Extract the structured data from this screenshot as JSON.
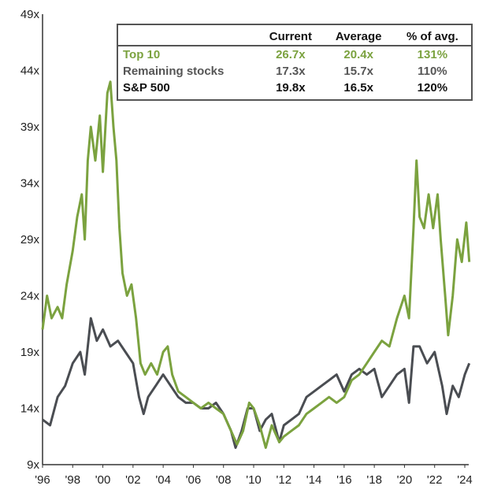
{
  "chart_data": {
    "type": "line",
    "title": "",
    "xlabel": "",
    "ylabel": "",
    "xlim": [
      1996,
      2024.4
    ],
    "ylim": [
      9,
      49
    ],
    "x_ticks": [
      "'96",
      "'98",
      "'00",
      "'02",
      "'04",
      "'06",
      "'08",
      "'10",
      "'12",
      "'14",
      "'16",
      "'18",
      "'20",
      "'22",
      "'24"
    ],
    "y_ticks": [
      "9x",
      "14x",
      "19x",
      "24x",
      "29x",
      "34x",
      "39x",
      "44x",
      "49x"
    ],
    "grid": false,
    "series": [
      {
        "name": "Top 10",
        "color": "#7ba23f",
        "x": [
          1996.0,
          1996.3,
          1996.6,
          1997.0,
          1997.3,
          1997.6,
          1998.0,
          1998.3,
          1998.6,
          1998.8,
          1999.0,
          1999.2,
          1999.5,
          1999.8,
          2000.0,
          2000.3,
          2000.5,
          2000.7,
          2000.9,
          2001.1,
          2001.3,
          2001.6,
          2001.9,
          2002.2,
          2002.5,
          2002.8,
          2003.2,
          2003.6,
          2004.0,
          2004.3,
          2004.6,
          2005.0,
          2005.5,
          2006.0,
          2006.5,
          2007.0,
          2007.5,
          2008.0,
          2008.5,
          2008.9,
          2009.3,
          2009.7,
          2010.0,
          2010.4,
          2010.8,
          2011.2,
          2011.7,
          2012.0,
          2012.5,
          2013.0,
          2013.5,
          2014.0,
          2014.5,
          2015.0,
          2015.5,
          2016.0,
          2016.5,
          2017.0,
          2017.5,
          2018.0,
          2018.5,
          2019.0,
          2019.5,
          2020.0,
          2020.3,
          2020.6,
          2020.8,
          2021.0,
          2021.3,
          2021.6,
          2021.9,
          2022.2,
          2022.4,
          2022.7,
          2022.9,
          2023.2,
          2023.5,
          2023.8,
          2024.1,
          2024.3
        ],
        "values": [
          21,
          24,
          22,
          23,
          22,
          25,
          28,
          31,
          33,
          29,
          36,
          39,
          36,
          40,
          35,
          42,
          43,
          39,
          36,
          30,
          26,
          24,
          25,
          22,
          18,
          17,
          18,
          17,
          19,
          19.5,
          17,
          15.5,
          15,
          14.5,
          14,
          14.5,
          14,
          13.5,
          12,
          10.8,
          12,
          14.5,
          14,
          12.5,
          10.5,
          12.5,
          11,
          11.5,
          12,
          12.5,
          13.5,
          14,
          14.5,
          15,
          14.5,
          15,
          16.5,
          17,
          18,
          19,
          20,
          19.5,
          22,
          24,
          22,
          30,
          36,
          31,
          30,
          33,
          30,
          33,
          29,
          24,
          20.5,
          24,
          29,
          27,
          30.5,
          27
        ]
      },
      {
        "name": "Remaining stocks",
        "color": "#4a4d52",
        "x": [
          1996.0,
          1996.5,
          1997.0,
          1997.5,
          1998.0,
          1998.5,
          1998.8,
          1999.2,
          1999.6,
          2000.0,
          2000.5,
          2001.0,
          2001.5,
          2002.0,
          2002.4,
          2002.7,
          2003.0,
          2003.5,
          2004.0,
          2004.5,
          2005.0,
          2005.5,
          2006.0,
          2006.5,
          2007.0,
          2007.5,
          2008.0,
          2008.5,
          2008.8,
          2009.2,
          2009.6,
          2010.0,
          2010.4,
          2010.8,
          2011.2,
          2011.7,
          2012.0,
          2012.5,
          2013.0,
          2013.5,
          2014.0,
          2014.5,
          2015.0,
          2015.5,
          2016.0,
          2016.5,
          2017.0,
          2017.5,
          2018.0,
          2018.5,
          2019.0,
          2019.5,
          2020.0,
          2020.3,
          2020.6,
          2021.0,
          2021.5,
          2022.0,
          2022.5,
          2022.8,
          2023.2,
          2023.6,
          2024.0,
          2024.3
        ],
        "values": [
          13,
          12.5,
          15,
          16,
          18,
          19,
          17,
          22,
          20,
          21,
          19.5,
          20,
          19,
          18,
          15,
          13.5,
          15,
          16,
          17,
          16,
          15,
          14.5,
          14.5,
          14,
          14,
          14.5,
          13.5,
          12,
          10.5,
          12,
          14,
          14,
          12,
          13,
          13.5,
          11,
          12.5,
          13,
          13.5,
          15,
          15.5,
          16,
          16.5,
          17,
          15.5,
          17,
          17.5,
          17,
          17.5,
          15,
          16,
          17,
          17.5,
          14.5,
          19.5,
          19.5,
          18,
          19,
          16,
          13.5,
          16,
          15,
          17,
          18
        ]
      }
    ],
    "table": {
      "headers": [
        "",
        "Current",
        "Average",
        "% of avg."
      ],
      "rows": [
        [
          "Top 10",
          "26.7x",
          "20.4x",
          "131%"
        ],
        [
          "Remaining stocks",
          "17.3x",
          "15.7x",
          "110%"
        ],
        [
          "S&P 500",
          "19.8x",
          "16.5x",
          "120%"
        ]
      ]
    },
    "legend_placement": "top-right"
  }
}
